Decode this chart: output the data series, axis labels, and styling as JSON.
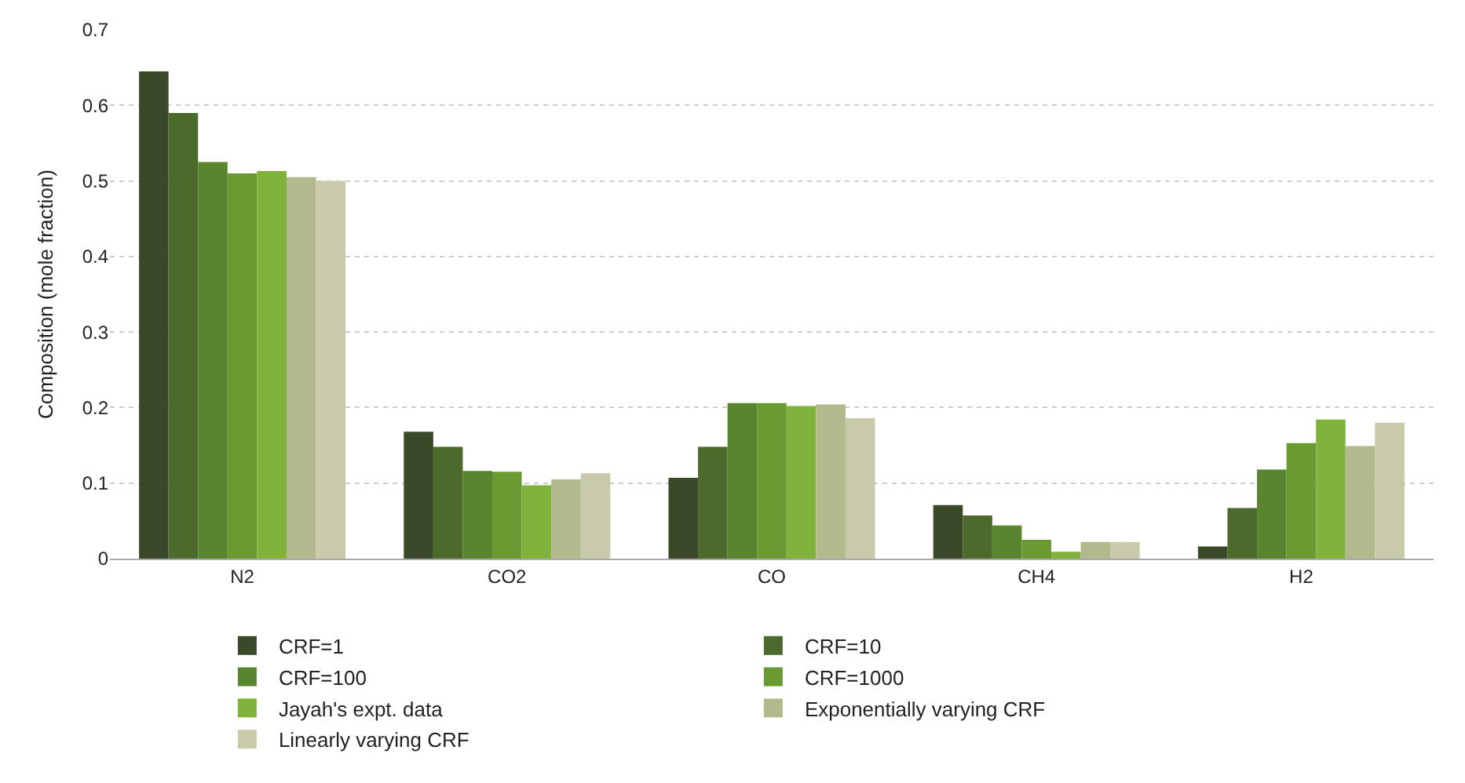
{
  "chart_data": {
    "type": "bar",
    "ylabel": "Composition (mole fraction)",
    "categories": [
      "N2",
      "CO2",
      "CO",
      "CH4",
      "H2"
    ],
    "series": [
      {
        "name": "CRF=1",
        "color": "#3a4a28",
        "values": [
          0.645,
          0.168,
          0.107,
          0.071,
          0.016
        ]
      },
      {
        "name": "CRF=10",
        "color": "#4b6a2c",
        "values": [
          0.59,
          0.148,
          0.148,
          0.057,
          0.067
        ]
      },
      {
        "name": "CRF=100",
        "color": "#5a8530",
        "values": [
          0.525,
          0.116,
          0.206,
          0.044,
          0.118
        ]
      },
      {
        "name": "CRF=1000",
        "color": "#6a9a32",
        "values": [
          0.51,
          0.115,
          0.206,
          0.025,
          0.153
        ]
      },
      {
        "name": "Jayah's expt. data",
        "color": "#7fb33c",
        "values": [
          0.513,
          0.097,
          0.202,
          0.009,
          0.184
        ]
      },
      {
        "name": "Exponentially varying CRF",
        "color": "#b2b98c",
        "values": [
          0.505,
          0.105,
          0.204,
          0.022,
          0.149
        ]
      },
      {
        "name": "Linearly varying CRF",
        "color": "#c9caa9",
        "values": [
          0.5,
          0.113,
          0.186,
          0.022,
          0.18
        ]
      }
    ],
    "ylim": [
      0,
      0.7
    ],
    "yticks": [
      0,
      0.1,
      0.2,
      0.3,
      0.4,
      0.5,
      0.6,
      0.7
    ],
    "grid": "y",
    "legend": "bottom"
  }
}
